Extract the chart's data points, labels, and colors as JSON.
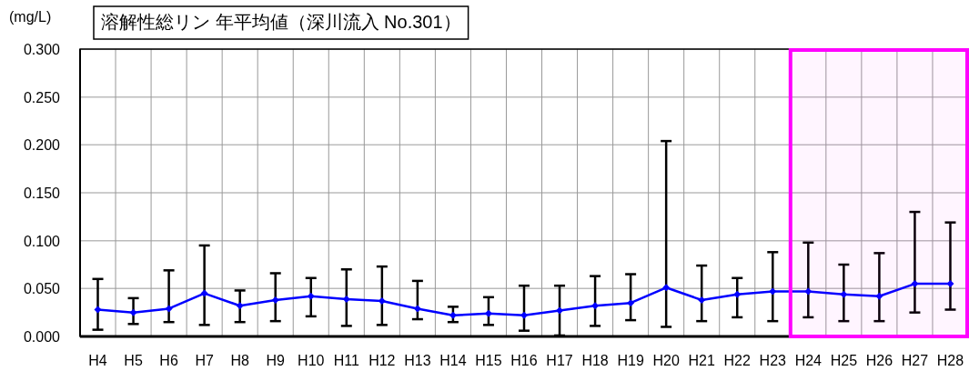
{
  "chart_data": {
    "type": "line",
    "title": "溶解性総リン 年平均値（深川流入 No.301）",
    "ylabel": "(mg/L)",
    "categories": [
      "H4",
      "H5",
      "H6",
      "H7",
      "H8",
      "H9",
      "H10",
      "H11",
      "H12",
      "H13",
      "H14",
      "H15",
      "H16",
      "H17",
      "H18",
      "H19",
      "H20",
      "H21",
      "H22",
      "H23",
      "H24",
      "H25",
      "H26",
      "H27",
      "H28"
    ],
    "series": [
      {
        "color": "#0000ff",
        "marker": "diamond",
        "line_style": "solid",
        "values": [
          0.028,
          0.025,
          0.029,
          0.045,
          0.032,
          0.038,
          0.042,
          0.039,
          0.037,
          0.029,
          0.022,
          0.024,
          0.022,
          0.027,
          0.032,
          0.035,
          0.051,
          0.038,
          0.044,
          0.047,
          0.047,
          0.044,
          0.042,
          0.055,
          0.055
        ],
        "errors": [
          [
            0.007,
            0.06
          ],
          [
            0.013,
            0.04
          ],
          [
            0.015,
            0.069
          ],
          [
            0.012,
            0.095
          ],
          [
            0.015,
            0.048
          ],
          [
            0.016,
            0.066
          ],
          [
            0.021,
            0.061
          ],
          [
            0.011,
            0.07
          ],
          [
            0.012,
            0.073
          ],
          [
            0.018,
            0.058
          ],
          [
            0.015,
            0.031
          ],
          [
            0.012,
            0.041
          ],
          [
            0.006,
            0.053
          ],
          [
            0.001,
            0.053
          ],
          [
            0.011,
            0.063
          ],
          [
            0.017,
            0.065
          ],
          [
            0.01,
            0.204
          ],
          [
            0.016,
            0.074
          ],
          [
            0.02,
            0.061
          ],
          [
            0.016,
            0.088
          ],
          [
            0.02,
            0.098
          ],
          [
            0.016,
            0.075
          ],
          [
            0.016,
            0.087
          ],
          [
            0.025,
            0.13
          ],
          [
            0.028,
            0.119
          ]
        ]
      }
    ],
    "ylim": [
      0,
      0.3
    ],
    "yticks": [
      {
        "value": 0,
        "label": "0.000"
      },
      {
        "value": 0.05,
        "label": "0.050"
      },
      {
        "value": 0.1,
        "label": "0.100"
      },
      {
        "value": 0.15,
        "label": "0.150"
      },
      {
        "value": 0.2,
        "label": "0.200"
      },
      {
        "value": 0.25,
        "label": "0.250"
      },
      {
        "value": 0.3,
        "label": "0.300"
      }
    ],
    "grid": true,
    "bands": [
      {
        "axis": "x",
        "from": "H24",
        "to": "H28",
        "color": "#ff00ff"
      }
    ]
  }
}
